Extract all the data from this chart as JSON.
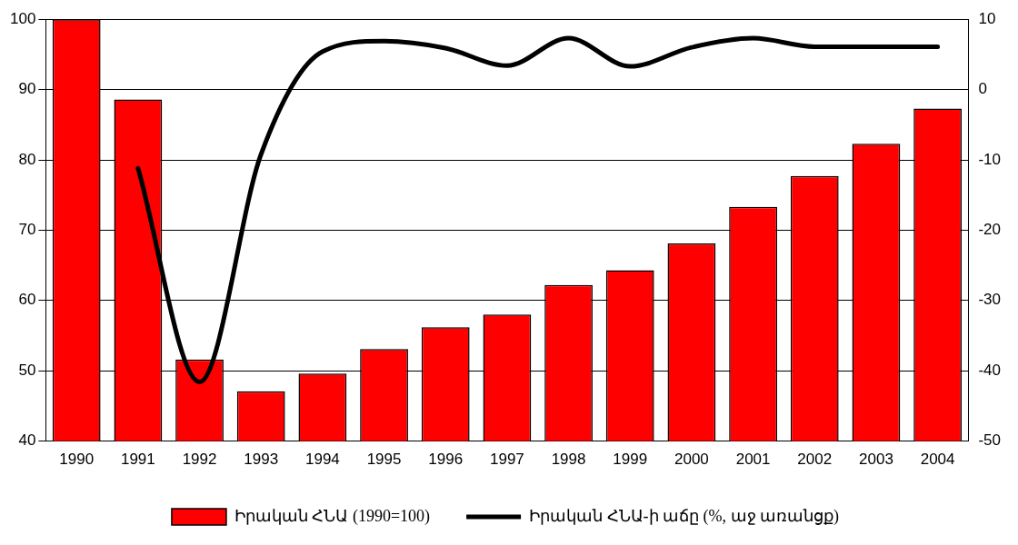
{
  "chart_data": {
    "type": "bar",
    "categories": [
      "1990",
      "1991",
      "1992",
      "1993",
      "1994",
      "1995",
      "1996",
      "1997",
      "1998",
      "1999",
      "2000",
      "2001",
      "2002",
      "2003",
      "2004"
    ],
    "series": [
      {
        "name": "Իրական ՀՆԱ (1990=100)",
        "color": "#ff0000",
        "values": [
          100,
          88.6,
          51.6,
          47.1,
          49.6,
          53.1,
          56.2,
          58.0,
          62.2,
          64.3,
          68.1,
          73.3,
          77.7,
          82.3,
          87.3
        ]
      },
      {
        "name": "Իրական ՀՆԱ-ի աճը (%, աջ առանցք)",
        "type": "line",
        "axis": "y2",
        "color": "#000000",
        "values": [
          null,
          -11.2,
          -41.6,
          -9.2,
          5.4,
          6.9,
          5.9,
          3.4,
          7.3,
          3.3,
          6.0,
          7.3,
          6.1,
          6.1,
          6.1
        ]
      }
    ],
    "ylim": [
      40,
      100
    ],
    "yticks": [
      40,
      50,
      60,
      70,
      80,
      90,
      100
    ],
    "y2lim": [
      -50,
      10
    ],
    "y2ticks": [
      -50,
      -40,
      -30,
      -20,
      -10,
      0,
      10
    ],
    "grid": "y",
    "legend": "bottom",
    "marker": "none"
  }
}
